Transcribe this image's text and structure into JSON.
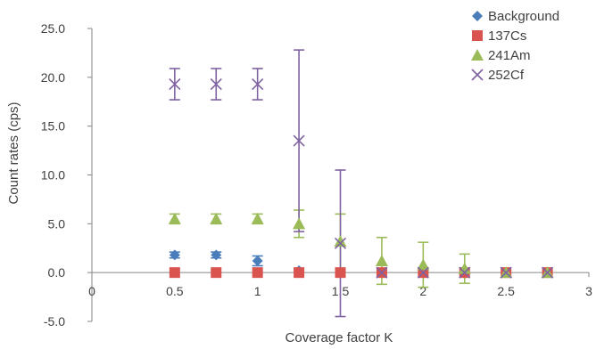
{
  "chart_data": {
    "type": "scatter",
    "title": "",
    "xlabel": "Coverage factor K",
    "ylabel": "Count rates (cps)",
    "xlim": [
      0,
      3
    ],
    "ylim": [
      -5,
      25
    ],
    "x_ticks": [
      0,
      0.5,
      1,
      1.5,
      2,
      2.5,
      3
    ],
    "x_tick_labels": [
      "0",
      "0.5",
      "1",
      "1.5",
      "2",
      "2.5",
      "3"
    ],
    "y_ticks": [
      -5,
      0,
      5,
      10,
      15,
      20,
      25
    ],
    "y_tick_labels": [
      "-5.0",
      "0.0",
      "5.0",
      "10.0",
      "15.0",
      "20.0",
      "25.0"
    ],
    "grid": false,
    "legend_position": "top-right",
    "series": [
      {
        "name": "Background",
        "marker": "diamond",
        "color": "#4a7ebb",
        "x": [
          0.5,
          0.75,
          1.0,
          1.25,
          1.5,
          1.75,
          2.0,
          2.25,
          2.5,
          2.75
        ],
        "y": [
          1.8,
          1.8,
          1.2,
          0.2,
          0.0,
          0.0,
          0.0,
          0.0,
          0.0,
          0.0
        ],
        "err": [
          0.3,
          0.3,
          0.5,
          0.2,
          0.0,
          0.0,
          0.0,
          0.0,
          0.0,
          0.0
        ]
      },
      {
        "name": "137Cs",
        "marker": "square",
        "color": "#d9534f",
        "x": [
          0.5,
          0.75,
          1.0,
          1.25,
          1.5,
          1.75,
          2.0,
          2.25,
          2.5,
          2.75
        ],
        "y": [
          0.0,
          0.0,
          0.0,
          0.0,
          0.0,
          0.0,
          0.0,
          0.0,
          0.0,
          0.0
        ],
        "err": [
          0,
          0,
          0,
          0,
          0,
          0,
          0,
          0,
          0,
          0
        ]
      },
      {
        "name": "241Am",
        "marker": "triangle",
        "color": "#9bbb59",
        "x": [
          0.5,
          0.75,
          1.0,
          1.25,
          1.5,
          1.75,
          2.0,
          2.25,
          2.5,
          2.75
        ],
        "y": [
          5.5,
          5.5,
          5.5,
          5.0,
          3.2,
          1.2,
          0.8,
          0.4,
          0.0,
          0.0
        ],
        "err": [
          0.5,
          0.5,
          0.5,
          1.4,
          2.8,
          2.4,
          2.3,
          1.5,
          0.0,
          0.0
        ]
      },
      {
        "name": "252Cf",
        "marker": "x",
        "color": "#7e62a1",
        "x": [
          0.5,
          0.75,
          1.0,
          1.25,
          1.5,
          1.75,
          2.0,
          2.25,
          2.5,
          2.75
        ],
        "y": [
          19.3,
          19.3,
          19.3,
          13.5,
          3.0,
          0.0,
          0.0,
          0.0,
          0.0,
          0.0
        ],
        "err": [
          1.6,
          1.6,
          1.6,
          9.3,
          7.5,
          0.0,
          0.0,
          0.0,
          0.0,
          0.0
        ]
      }
    ]
  }
}
